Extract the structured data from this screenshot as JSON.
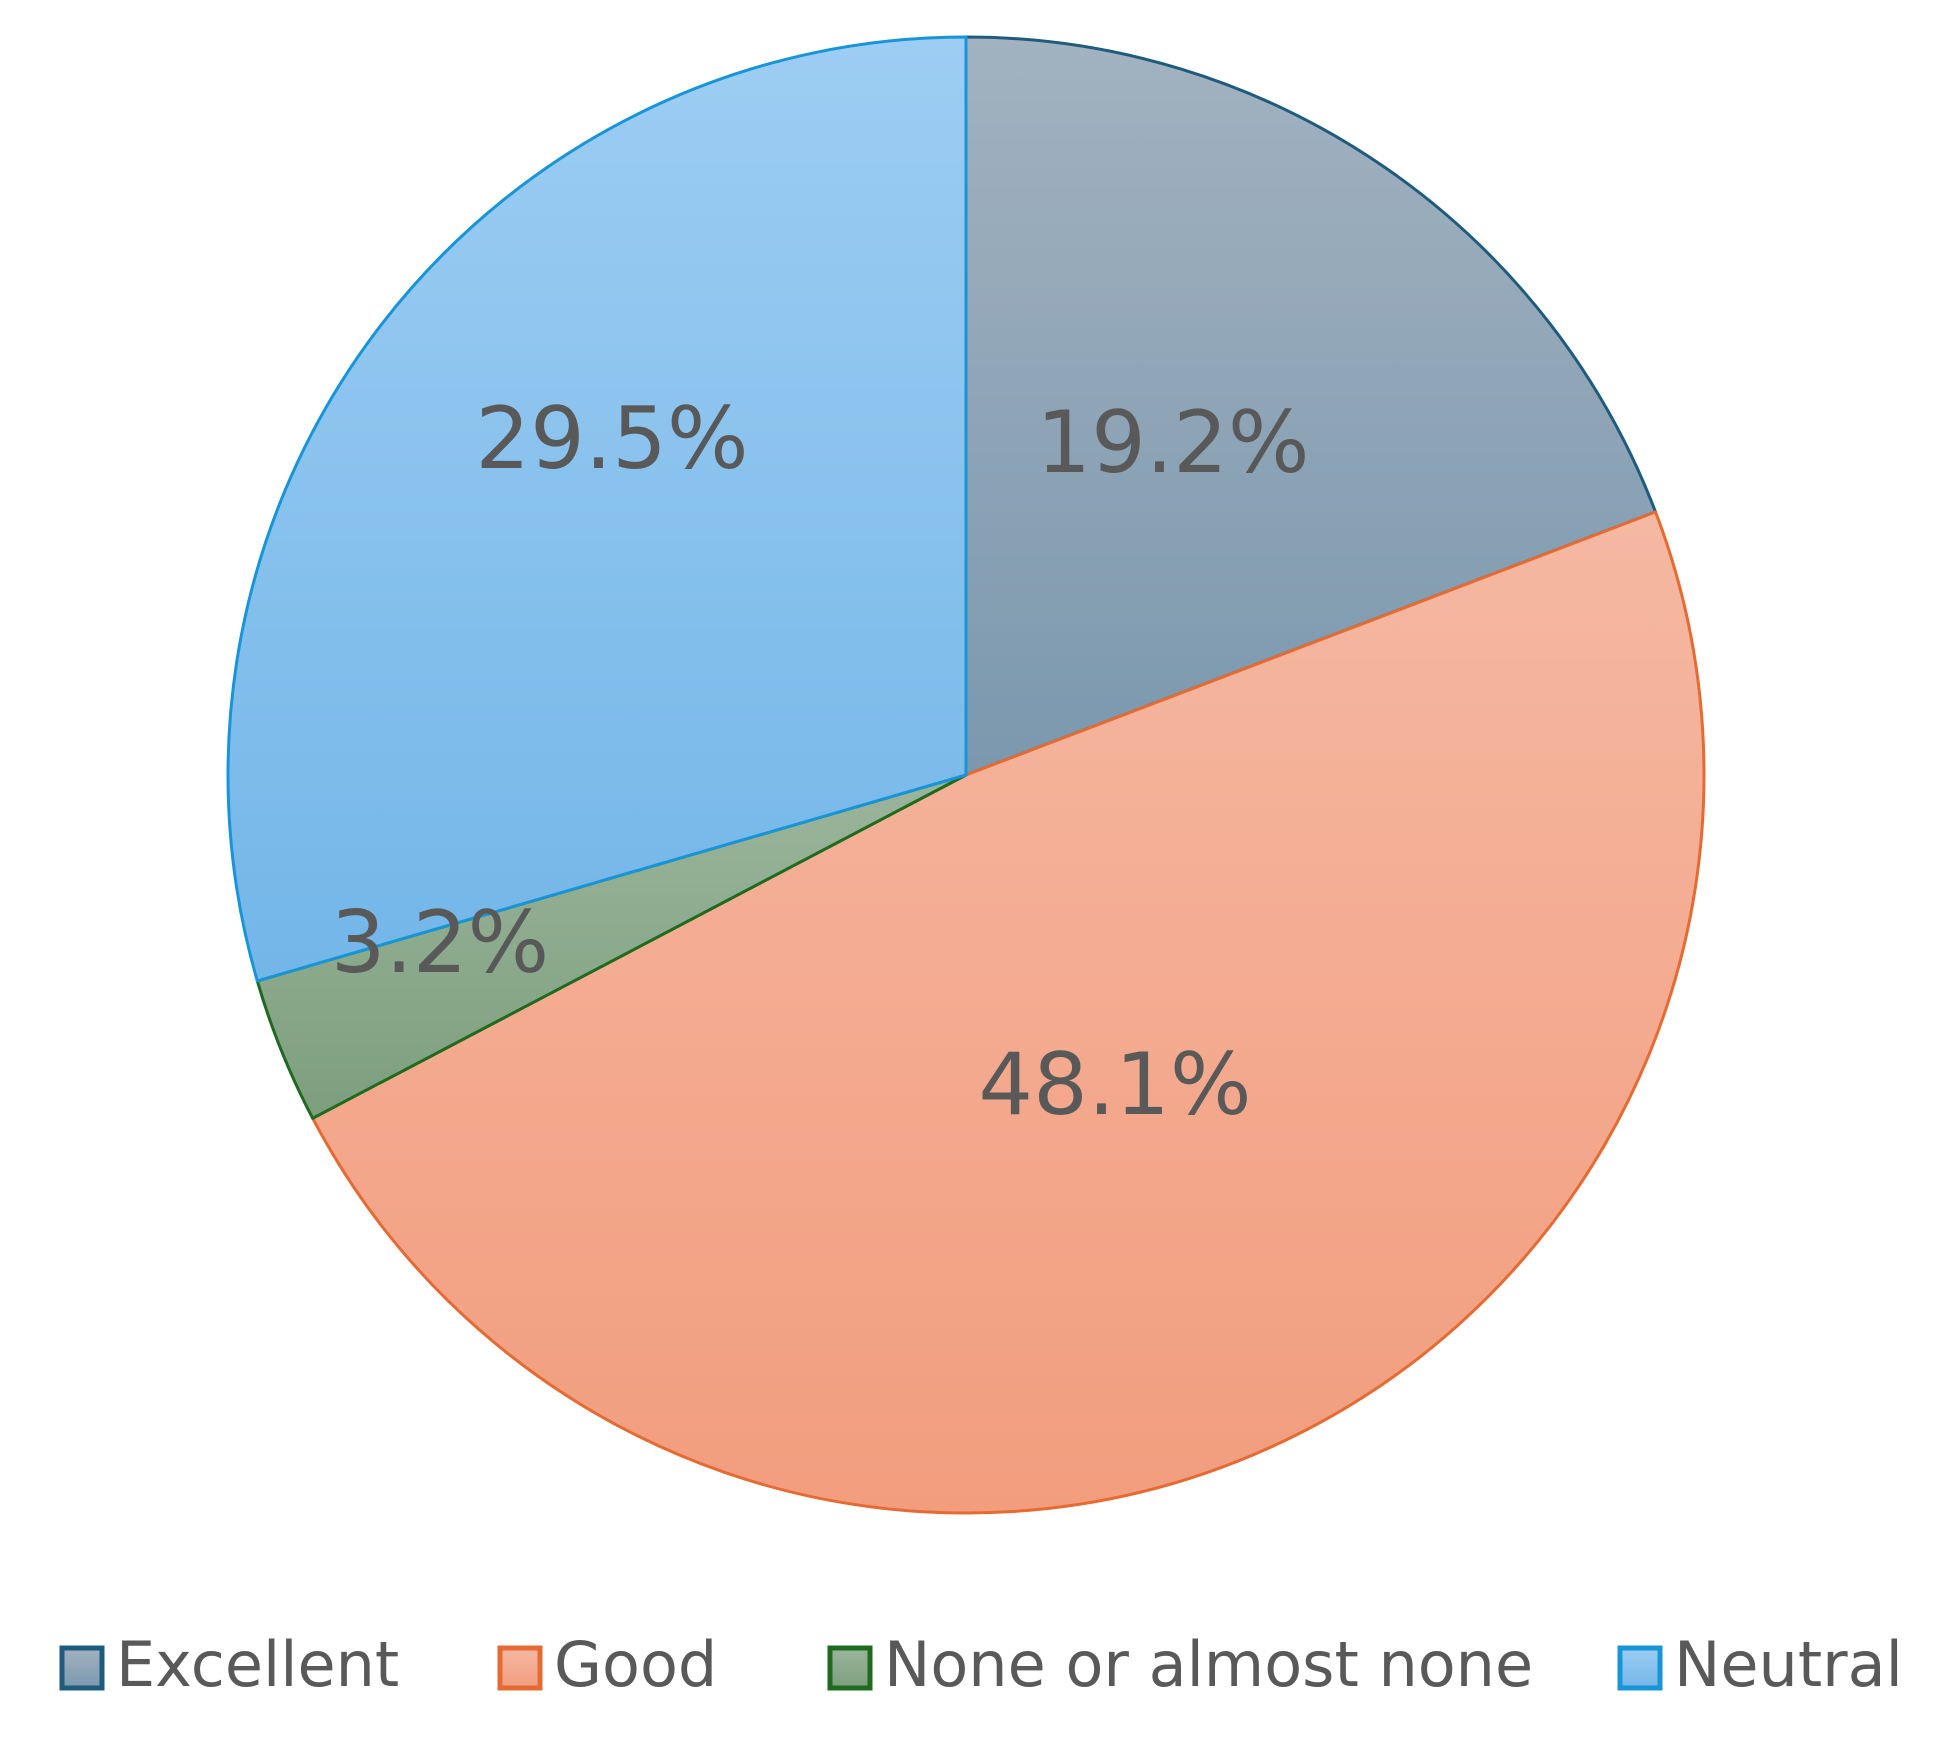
{
  "chart_data": {
    "type": "pie",
    "title": "",
    "legend_position": "bottom",
    "categories": [
      "Excellent",
      "Good",
      "None or almost none",
      "Neutral"
    ],
    "values": [
      19.2,
      48.1,
      3.2,
      29.5
    ],
    "labels": [
      "19.2%",
      "48.1%",
      "3.2%",
      "29.5%"
    ],
    "colors": {
      "fill_top": [
        "#A2B2C0",
        "#F5B8A2",
        "#9BB59C",
        "#9DCDF3"
      ],
      "fill_bottom": [
        "#7B98AE",
        "#F29D7E",
        "#7D9F7E",
        "#73B6E8"
      ],
      "stroke": [
        "#1F5B7C",
        "#E56B33",
        "#1E6B20",
        "#1895D8"
      ]
    }
  }
}
